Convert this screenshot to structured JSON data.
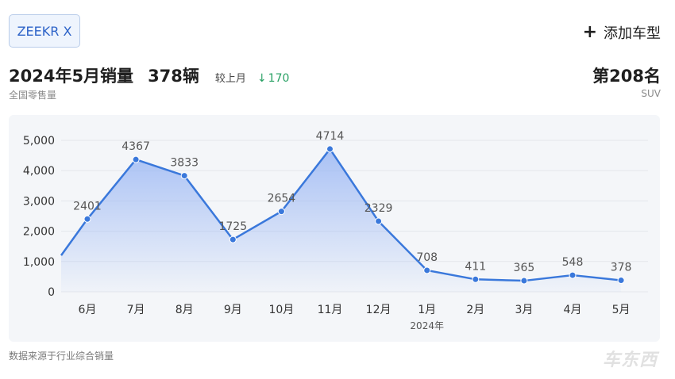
{
  "header": {
    "model_name": "ZEEKR X",
    "add_model_label": "添加车型",
    "headline_title": "2024年5月销量",
    "headline_units": "378辆",
    "compare_label": "较上月",
    "compare_value": "170",
    "compare_direction": "down",
    "subtitle": "全国零售量",
    "rank": "第208名",
    "segment": "SUV"
  },
  "footer": {
    "source_note": "数据来源于行业综合销量",
    "watermark": "车东西"
  },
  "colors": {
    "line": "#3a78db",
    "area_top": "#9cb8f4",
    "delta_down": "#2aa165",
    "chip_text": "#2d63c8"
  },
  "chart_data": {
    "type": "area",
    "x": [
      "6月",
      "7月",
      "8月",
      "9月",
      "10月",
      "11月",
      "12月",
      "1月",
      "2月",
      "3月",
      "4月",
      "5月"
    ],
    "year_marker": {
      "x": "1月",
      "label": "2024年"
    },
    "series": [
      {
        "values": [
          2401,
          4367,
          3833,
          1725,
          2654,
          4714,
          2329,
          708,
          411,
          365,
          548,
          378
        ]
      }
    ],
    "leading_value": 1200,
    "ylim": [
      0,
      5000
    ],
    "yticks": [
      0,
      1000,
      2000,
      3000,
      4000,
      5000
    ],
    "ytick_labels": [
      "0",
      "1,000",
      "2,000",
      "3,000",
      "4,000",
      "5,000"
    ],
    "grid": true,
    "data_labels": true
  }
}
